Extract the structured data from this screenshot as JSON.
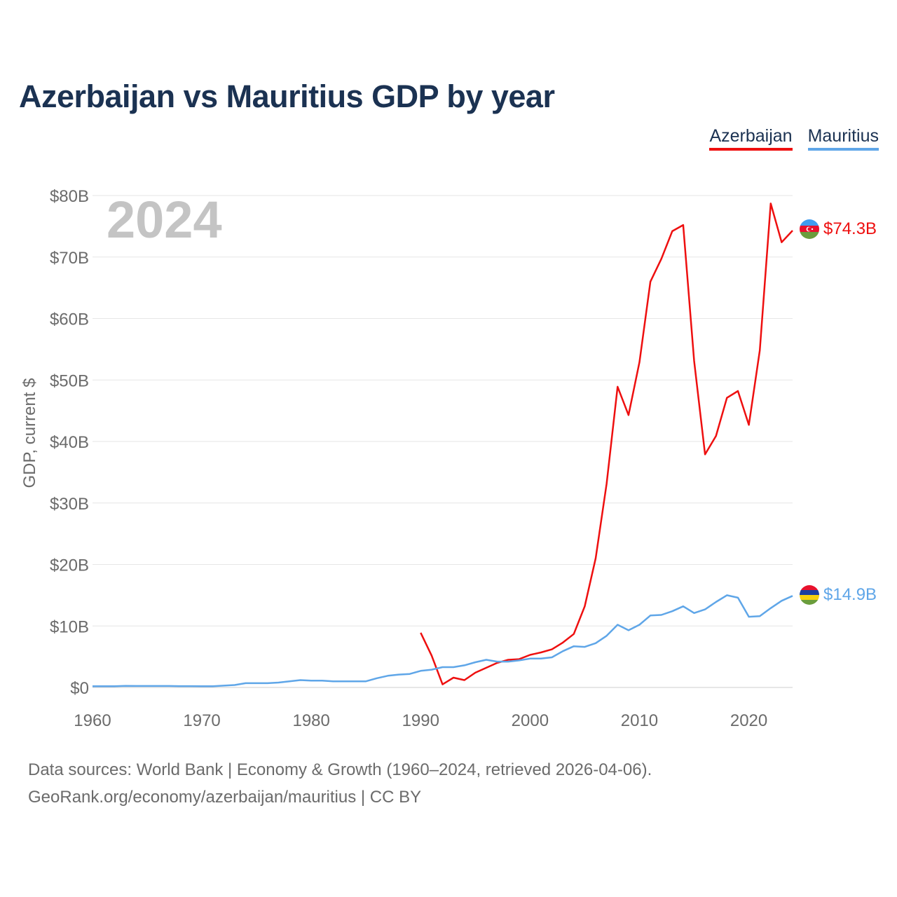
{
  "title": "Azerbaijan vs Mauritius GDP by year",
  "year_label": "2024",
  "legend": [
    {
      "name": "Azerbaijan",
      "color": "#ee0f0f"
    },
    {
      "name": "Mauritius",
      "color": "#5fa6e8"
    }
  ],
  "source": {
    "line1": "Data sources: World Bank | Economy & Growth (1960–2024, retrieved 2026-04-06).",
    "line2": "GeoRank.org/economy/azerbaijan/mauritius | CC BY"
  },
  "chart_data": {
    "type": "line",
    "title": "Azerbaijan vs Mauritius GDP by year",
    "xlabel": "",
    "ylabel": "GDP, current $",
    "xlim": [
      1960,
      2024
    ],
    "ylim": [
      0,
      80
    ],
    "x_ticks": [
      1960,
      1970,
      1980,
      1990,
      2000,
      2010,
      2020
    ],
    "y_ticks": [
      0,
      10,
      20,
      30,
      40,
      50,
      60,
      70,
      80
    ],
    "y_tick_labels": [
      "$0",
      "$10B",
      "$20B",
      "$30B",
      "$40B",
      "$50B",
      "$60B",
      "$70B",
      "$80B"
    ],
    "grid": true,
    "series": [
      {
        "name": "Azerbaijan",
        "color": "#ee0f0f",
        "end_label": "$74.3B",
        "points": [
          [
            1990,
            8.9
          ],
          [
            1991,
            5.2
          ],
          [
            1992,
            0.5
          ],
          [
            1993,
            1.6
          ],
          [
            1994,
            1.2
          ],
          [
            1995,
            2.4
          ],
          [
            1996,
            3.2
          ],
          [
            1997,
            4.0
          ],
          [
            1998,
            4.5
          ],
          [
            1999,
            4.6
          ],
          [
            2000,
            5.3
          ],
          [
            2001,
            5.7
          ],
          [
            2002,
            6.2
          ],
          [
            2003,
            7.3
          ],
          [
            2004,
            8.7
          ],
          [
            2005,
            13.2
          ],
          [
            2006,
            21.0
          ],
          [
            2007,
            33.1
          ],
          [
            2008,
            48.9
          ],
          [
            2009,
            44.3
          ],
          [
            2010,
            52.9
          ],
          [
            2011,
            66.0
          ],
          [
            2012,
            69.7
          ],
          [
            2013,
            74.2
          ],
          [
            2014,
            75.2
          ],
          [
            2015,
            53.1
          ],
          [
            2016,
            37.9
          ],
          [
            2017,
            40.9
          ],
          [
            2018,
            47.1
          ],
          [
            2019,
            48.2
          ],
          [
            2020,
            42.7
          ],
          [
            2021,
            54.8
          ],
          [
            2022,
            78.7
          ],
          [
            2023,
            72.4
          ],
          [
            2024,
            74.3
          ]
        ]
      },
      {
        "name": "Mauritius",
        "color": "#5fa6e8",
        "end_label": "$14.9B",
        "points": [
          [
            1960,
            0.2
          ],
          [
            1961,
            0.2
          ],
          [
            1962,
            0.2
          ],
          [
            1963,
            0.25
          ],
          [
            1964,
            0.24
          ],
          [
            1965,
            0.24
          ],
          [
            1966,
            0.24
          ],
          [
            1967,
            0.24
          ],
          [
            1968,
            0.22
          ],
          [
            1969,
            0.22
          ],
          [
            1970,
            0.2
          ],
          [
            1971,
            0.2
          ],
          [
            1972,
            0.3
          ],
          [
            1973,
            0.4
          ],
          [
            1974,
            0.7
          ],
          [
            1975,
            0.7
          ],
          [
            1976,
            0.7
          ],
          [
            1977,
            0.8
          ],
          [
            1978,
            1.0
          ],
          [
            1979,
            1.2
          ],
          [
            1980,
            1.1
          ],
          [
            1981,
            1.1
          ],
          [
            1982,
            1.0
          ],
          [
            1983,
            1.0
          ],
          [
            1984,
            1.0
          ],
          [
            1985,
            1.0
          ],
          [
            1986,
            1.5
          ],
          [
            1987,
            1.9
          ],
          [
            1988,
            2.1
          ],
          [
            1989,
            2.2
          ],
          [
            1990,
            2.7
          ],
          [
            1991,
            2.9
          ],
          [
            1992,
            3.3
          ],
          [
            1993,
            3.3
          ],
          [
            1994,
            3.6
          ],
          [
            1995,
            4.1
          ],
          [
            1996,
            4.5
          ],
          [
            1997,
            4.2
          ],
          [
            1998,
            4.2
          ],
          [
            1999,
            4.4
          ],
          [
            2000,
            4.7
          ],
          [
            2001,
            4.7
          ],
          [
            2002,
            4.9
          ],
          [
            2003,
            5.9
          ],
          [
            2004,
            6.7
          ],
          [
            2005,
            6.6
          ],
          [
            2006,
            7.2
          ],
          [
            2007,
            8.4
          ],
          [
            2008,
            10.2
          ],
          [
            2009,
            9.3
          ],
          [
            2010,
            10.2
          ],
          [
            2011,
            11.7
          ],
          [
            2012,
            11.8
          ],
          [
            2013,
            12.4
          ],
          [
            2014,
            13.2
          ],
          [
            2015,
            12.1
          ],
          [
            2016,
            12.7
          ],
          [
            2017,
            13.9
          ],
          [
            2018,
            15.0
          ],
          [
            2019,
            14.6
          ],
          [
            2020,
            11.5
          ],
          [
            2021,
            11.6
          ],
          [
            2022,
            12.9
          ],
          [
            2023,
            14.1
          ],
          [
            2024,
            14.9
          ]
        ]
      }
    ]
  }
}
